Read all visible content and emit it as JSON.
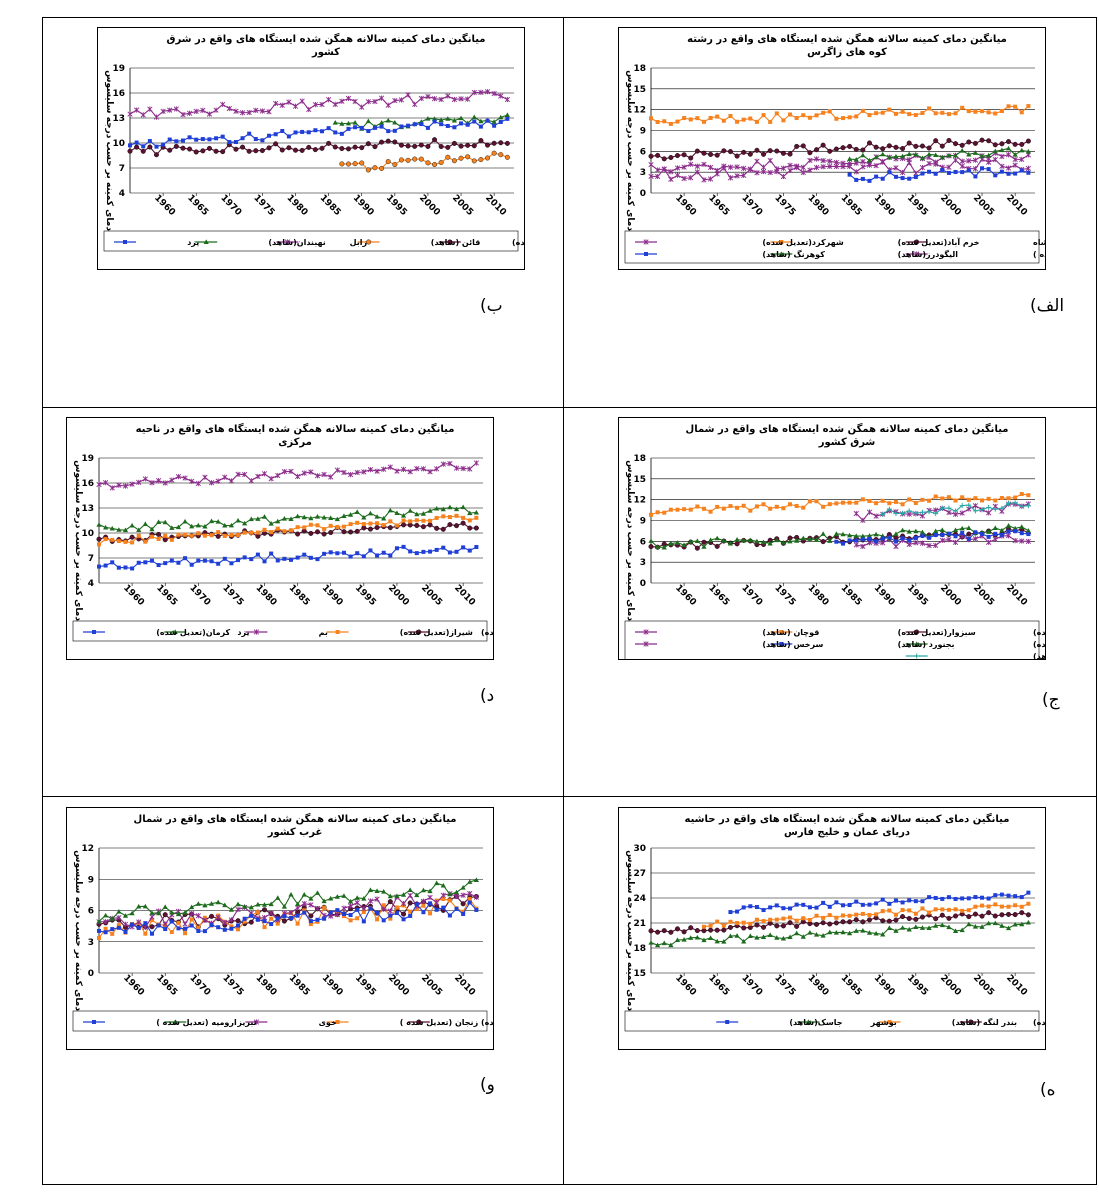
{
  "colors": {
    "darkred": "#5a1230",
    "orange": "#f5821f",
    "purple": "#8b2c8b",
    "green": "#1d6b1d",
    "blue": "#1f3fd6",
    "teal": "#2aa7a7"
  },
  "panels": [
    {
      "key": "alef",
      "letter": "الف)",
      "chart_data": {
        "type": "line",
        "title": [
          "میانگین دمای کمینه سالانه همگن شده ایستگاه های واقع در رشته",
          "کوه های زاگرس"
        ],
        "ylabel": "دمای کمینه بر حسب درجه سلیسوس",
        "ylim": [
          0,
          18
        ],
        "yticks": [
          "0",
          "3",
          "6",
          "9",
          "12",
          "15",
          "18"
        ],
        "xlim": [
          1955,
          2013
        ],
        "xticks": [
          "1960",
          "1965",
          "1970",
          "1975",
          "1980",
          "1985",
          "1990",
          "1995",
          "2000",
          "2005",
          "2010"
        ],
        "grid": true,
        "legend": "bottom",
        "series": [
          {
            "name": "کرمانشاه",
            "color": "darkred",
            "marker": "circle",
            "start": 1955,
            "end": 2012,
            "base": 5.3,
            "trend": 0.04,
            "noise": 0.6
          },
          {
            "name": "خرم آباد(تعدیل شده)",
            "color": "orange",
            "marker": "square",
            "start": 1955,
            "end": 2012,
            "base": 10.2,
            "trend": 0.035,
            "noise": 0.6
          },
          {
            "name": "شهرکرد(تعدیل شده)",
            "color": "purple",
            "marker": "x",
            "start": 1955,
            "end": 2012,
            "base": 2.5,
            "trend": 0.03,
            "noise": 0.9
          },
          {
            "name": "سنندج (تعدیل شده )",
            "color": "purple",
            "marker": "x",
            "start": 1955,
            "end": 2012,
            "base": 3.5,
            "trend": 0.035,
            "noise": 0.7
          },
          {
            "name": "الیگودرز(شاهد)",
            "color": "green",
            "marker": "triangle",
            "start": 1985,
            "end": 2012,
            "base": 5.0,
            "trend": 0.04,
            "noise": 0.5
          },
          {
            "name": "کوهرنگ (شاهد)",
            "color": "blue",
            "marker": "square",
            "start": 1985,
            "end": 2012,
            "base": 2.2,
            "trend": 0.04,
            "noise": 0.6
          }
        ]
      }
    },
    {
      "key": "be",
      "letter": "ب)",
      "chart_data": {
        "type": "line",
        "title": [
          "میانگین دمای کمینه سالانه همگن شده ایستگاه های واقع در شرق",
          "کشور"
        ],
        "ylabel": "دمای کمینه بر حسب درجه سلیسوس",
        "ylim": [
          4,
          19
        ],
        "yticks": [
          "4",
          "7",
          "10",
          "13",
          "16",
          "19"
        ],
        "xlim": [
          1955,
          2013
        ],
        "xticks": [
          "1960",
          "1965",
          "1970",
          "1975",
          "1980",
          "1985",
          "1990",
          "1995",
          "2000",
          "2005",
          "2010"
        ],
        "grid": true,
        "legend": "bottom",
        "series": [
          {
            "name": "بیرجند(تعدیل شده)",
            "color": "darkred",
            "marker": "circle",
            "start": 1955,
            "end": 2012,
            "base": 9.0,
            "trend": 0.02,
            "noise": 0.5
          },
          {
            "name": "قائن (شاهد)",
            "color": "orange",
            "marker": "circle",
            "start": 1987,
            "end": 2012,
            "base": 7.0,
            "trend": 0.06,
            "noise": 0.5
          },
          {
            "name": "زابل",
            "color": "purple",
            "marker": "x",
            "start": 1955,
            "end": 2012,
            "base": 13.5,
            "trend": 0.04,
            "noise": 0.6
          },
          {
            "name": "نهبندان(شاهد)",
            "color": "green",
            "marker": "triangle",
            "start": 1986,
            "end": 2012,
            "base": 12.0,
            "trend": 0.04,
            "noise": 0.5
          },
          {
            "name": "یزد",
            "color": "blue",
            "marker": "square",
            "start": 1955,
            "end": 2012,
            "base": 9.8,
            "trend": 0.05,
            "noise": 0.5
          }
        ]
      }
    },
    {
      "key": "jim",
      "letter": "ج)",
      "chart_data": {
        "type": "line",
        "title": [
          "میانگین دمای کمینه سالانه همگن شده ایستگاه های واقع در شمال",
          "شرق کشور"
        ],
        "ylabel": "دمای کمینه بر حسب درجه سلیسوس",
        "ylim": [
          0,
          18
        ],
        "yticks": [
          "0",
          "3",
          "6",
          "9",
          "12",
          "15",
          "18"
        ],
        "xlim": [
          1955,
          2013
        ],
        "xticks": [
          "1960",
          "1965",
          "1970",
          "1975",
          "1980",
          "1985",
          "1990",
          "1995",
          "2000",
          "2005",
          "2010"
        ],
        "grid": true,
        "legend": "bottom",
        "series": [
          {
            "name": "مشهد(تعدیل شده)",
            "color": "darkred",
            "marker": "circle",
            "start": 1955,
            "end": 2012,
            "base": 5.2,
            "trend": 0.04,
            "noise": 0.5
          },
          {
            "name": "سبزوار(تعدیل شده)",
            "color": "orange",
            "marker": "square",
            "start": 1955,
            "end": 2012,
            "base": 10.3,
            "trend": 0.04,
            "noise": 0.5
          },
          {
            "name": "قوچان (شاهد)",
            "color": "purple",
            "marker": "x",
            "start": 1986,
            "end": 2012,
            "base": 5.5,
            "trend": 0.04,
            "noise": 0.6
          },
          {
            "name": "تربت حیدریه(تعدیل شده)",
            "color": "green",
            "marker": "triangle",
            "start": 1955,
            "end": 2012,
            "base": 5.5,
            "trend": 0.04,
            "noise": 0.6
          },
          {
            "name": "بجنورد (شاهد)",
            "color": "blue",
            "marker": "square",
            "start": 1983,
            "end": 2012,
            "base": 6.0,
            "trend": 0.04,
            "noise": 0.5
          },
          {
            "name": "سرخس (شاهد)",
            "color": "purple",
            "marker": "x",
            "start": 1986,
            "end": 2012,
            "base": 9.5,
            "trend": 0.06,
            "noise": 0.6
          },
          {
            "name": "گنباد (شاهد)",
            "color": "teal",
            "marker": "plus",
            "start": 1990,
            "end": 2012,
            "base": 10.0,
            "trend": 0.05,
            "noise": 0.6
          }
        ]
      }
    },
    {
      "key": "dal",
      "letter": "د)",
      "chart_data": {
        "type": "line",
        "title": [
          "میانگین دمای کمینه سالانه همگن شده ایستگاه های واقع در ناحیه",
          "مرکزی"
        ],
        "ylabel": "دمای کمینه بر حسب درجه سلیسوس",
        "ylim": [
          4,
          19
        ],
        "yticks": [
          "4",
          "7",
          "10",
          "13",
          "16",
          "19"
        ],
        "xlim": [
          1955,
          2013
        ],
        "xticks": [
          "1960",
          "1965",
          "1970",
          "1975",
          "1980",
          "1985",
          "1990",
          "1995",
          "2000",
          "2005",
          "2010"
        ],
        "grid": true,
        "legend": "bottom",
        "series": [
          {
            "name": "اصفهان(تعدیل شده)",
            "color": "darkred",
            "marker": "circle",
            "start": 1955,
            "end": 2012,
            "base": 9.2,
            "trend": 0.03,
            "noise": 0.4
          },
          {
            "name": "شیراز(تعدیل شده)",
            "color": "orange",
            "marker": "square",
            "start": 1955,
            "end": 2012,
            "base": 9.0,
            "trend": 0.05,
            "noise": 0.4
          },
          {
            "name": "بم",
            "color": "purple",
            "marker": "x",
            "start": 1955,
            "end": 2012,
            "base": 15.8,
            "trend": 0.04,
            "noise": 0.5
          },
          {
            "name": "یزد",
            "color": "green",
            "marker": "triangle",
            "start": 1955,
            "end": 2012,
            "base": 10.5,
            "trend": 0.04,
            "noise": 0.5
          },
          {
            "name": "کرمان(تعدیل شده)",
            "color": "blue",
            "marker": "square",
            "start": 1955,
            "end": 2012,
            "base": 6.0,
            "trend": 0.04,
            "noise": 0.5
          }
        ]
      }
    },
    {
      "key": "he",
      "letter": "ه)",
      "chart_data": {
        "type": "line",
        "title": [
          "میانگین دمای کمینه سالانه همگن شده ایستگاه های واقع در حاشیه",
          "دریای عمان و خلیج فارس"
        ],
        "ylabel": "دمای کمینه بر حسب درجه سلیسوس",
        "ylim": [
          15,
          30
        ],
        "yticks": [
          "15",
          "18",
          "21",
          "24",
          "27",
          "30"
        ],
        "xlim": [
          1955,
          2013
        ],
        "xticks": [
          "1960",
          "1965",
          "1970",
          "1975",
          "1980",
          "1985",
          "1990",
          "1995",
          "2000",
          "2005",
          "2010"
        ],
        "grid": true,
        "legend": "bottom",
        "series": [
          {
            "name": "بندر عباس(تعدیل شده)",
            "color": "darkred",
            "marker": "circle",
            "start": 1955,
            "end": 2012,
            "base": 20.0,
            "trend": 0.04,
            "noise": 0.3
          },
          {
            "name": "بندر لنگه (شاهد)",
            "color": "orange",
            "marker": "square",
            "start": 1963,
            "end": 2012,
            "base": 20.8,
            "trend": 0.05,
            "noise": 0.3
          },
          {
            "name": "بوشهر",
            "color": "green",
            "marker": "triangle",
            "start": 1955,
            "end": 2012,
            "base": 18.6,
            "trend": 0.04,
            "noise": 0.4
          },
          {
            "name": "جاسک(شاهد)",
            "color": "blue",
            "marker": "square",
            "start": 1967,
            "end": 2012,
            "base": 22.6,
            "trend": 0.04,
            "noise": 0.3
          }
        ]
      }
    },
    {
      "key": "vav",
      "letter": "و)",
      "chart_data": {
        "type": "line",
        "title": [
          "میانگین دمای کمینه سالانه همگن شده ایستگاه های واقع در شمال",
          "غرب کشور"
        ],
        "ylabel": "دمای کمینه بر حسب درجه سلیسوس",
        "ylim": [
          0,
          12
        ],
        "yticks": [
          "0",
          "3",
          "6",
          "9",
          "12"
        ],
        "xlim": [
          1955,
          2013
        ],
        "xticks": [
          "1960",
          "1965",
          "1970",
          "1975",
          "1980",
          "1985",
          "1990",
          "1995",
          "2000",
          "2005",
          "2010"
        ],
        "grid": true,
        "legend": "bottom",
        "series": [
          {
            "name": "قزوین(تعدیل شده)",
            "color": "darkred",
            "marker": "circle",
            "start": 1955,
            "end": 2012,
            "base": 4.5,
            "trend": 0.04,
            "noise": 0.7
          },
          {
            "name": "زنجان (تعدیل شده )",
            "color": "orange",
            "marker": "square",
            "start": 1955,
            "end": 2012,
            "base": 4.0,
            "trend": 0.045,
            "noise": 0.8
          },
          {
            "name": "خوی",
            "color": "purple",
            "marker": "x",
            "start": 1955,
            "end": 2012,
            "base": 4.8,
            "trend": 0.04,
            "noise": 0.8
          },
          {
            "name": "تبریز",
            "color": "green",
            "marker": "triangle",
            "start": 1955,
            "end": 2012,
            "base": 5.5,
            "trend": 0.05,
            "noise": 0.6
          },
          {
            "name": "ارومیه (تعدیل شده )",
            "color": "blue",
            "marker": "square",
            "start": 1955,
            "end": 2012,
            "base": 4.0,
            "trend": 0.04,
            "noise": 0.7
          }
        ]
      }
    }
  ]
}
